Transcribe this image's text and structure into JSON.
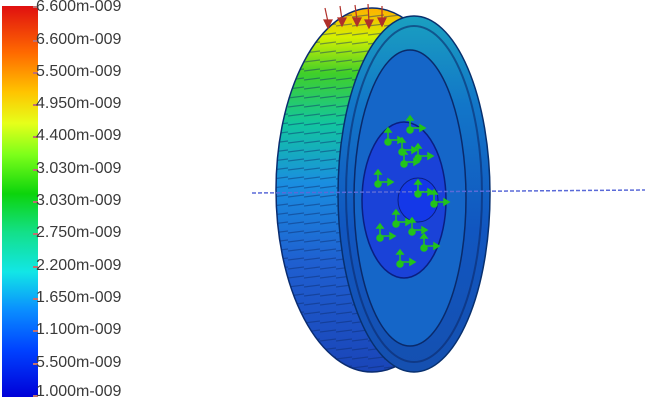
{
  "legend": {
    "labels": [
      "6.600m-009",
      "6.600m-009",
      "5.500m-009",
      "4.950m-009",
      "4.400m-009",
      "3.030m-009",
      "3.030m-009",
      "2.750m-009",
      "2.200m-009",
      "1.650m-009",
      "1.100m-009",
      "5.500m-009",
      "1.000m-009"
    ],
    "colors": [
      "#e01010",
      "#ff6a00",
      "#ffc400",
      "#e6ff1a",
      "#7dff1a",
      "#0cd40c",
      "#13e08a",
      "#12e6e6",
      "#0a8cff",
      "#0042ff",
      "#0000d8"
    ]
  },
  "model": {
    "object_icon": "gear-wheel-icon",
    "load_arrow_color": "#b0302a",
    "fixture_color": "#22c41a",
    "plane_line_color": "#5a6ad8"
  }
}
